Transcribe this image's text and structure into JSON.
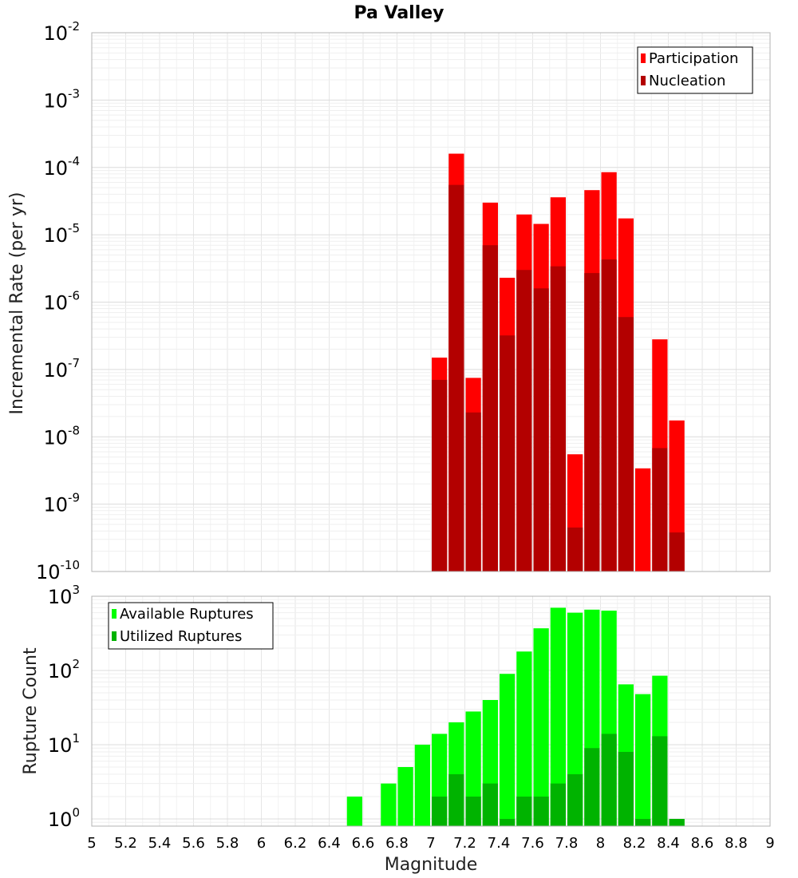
{
  "chart_data": [
    {
      "type": "bar",
      "title": "Pa Valley",
      "xlabel": "",
      "ylabel": "Incremental Rate (per yr)",
      "yscale": "log",
      "xlim": [
        5,
        9
      ],
      "ylim": [
        1e-10,
        0.01
      ],
      "yticks": [
        1e-10,
        1e-09,
        1e-08,
        1e-07,
        1e-06,
        1e-05,
        0.0001,
        0.001,
        0.01
      ],
      "ytick_labels": [
        {
          "base": "10",
          "exp": "-10"
        },
        {
          "base": "10",
          "exp": "-9"
        },
        {
          "base": "10",
          "exp": "-8"
        },
        {
          "base": "10",
          "exp": "-7"
        },
        {
          "base": "10",
          "exp": "-6"
        },
        {
          "base": "10",
          "exp": "-5"
        },
        {
          "base": "10",
          "exp": "-4"
        },
        {
          "base": "10",
          "exp": "-3"
        },
        {
          "base": "10",
          "exp": "-2"
        }
      ],
      "grid": true,
      "legend_position": "top-right",
      "bar_width": 0.1,
      "x": [
        7.05,
        7.15,
        7.25,
        7.35,
        7.45,
        7.55,
        7.65,
        7.75,
        7.85,
        7.95,
        8.05,
        8.15,
        8.25,
        8.35,
        8.45
      ],
      "series": [
        {
          "name": "Participation",
          "color": "#ff0000",
          "values": [
            1.5e-07,
            0.00016,
            7.5e-08,
            3e-05,
            2.3e-06,
            2e-05,
            1.45e-05,
            3.6e-05,
            5.5e-09,
            4.6e-05,
            8.5e-05,
            1.75e-05,
            3.4e-09,
            2.8e-07,
            1.75e-08
          ]
        },
        {
          "name": "Nucleation",
          "color": "#b30000",
          "values": [
            7e-08,
            5.5e-05,
            2.3e-08,
            7e-06,
            3.2e-07,
            3e-06,
            1.6e-06,
            3.4e-06,
            4.5e-10,
            2.7e-06,
            4.3e-06,
            6e-07,
            null,
            6.8e-09,
            3.8e-10
          ]
        }
      ]
    },
    {
      "type": "bar",
      "title": "",
      "xlabel": "Magnitude",
      "ylabel": "Rupture Count",
      "yscale": "log",
      "xlim": [
        5,
        9
      ],
      "ylim": [
        0.8,
        1000
      ],
      "yticks": [
        1,
        10,
        100,
        1000
      ],
      "ytick_labels": [
        {
          "base": "10",
          "exp": "0"
        },
        {
          "base": "10",
          "exp": "1"
        },
        {
          "base": "10",
          "exp": "2"
        },
        {
          "base": "10",
          "exp": "3"
        }
      ],
      "xticks": [
        5,
        5.2,
        5.4,
        5.6,
        5.8,
        6,
        6.2,
        6.4,
        6.6,
        6.8,
        7,
        7.2,
        7.4,
        7.6,
        7.8,
        8,
        8.2,
        8.4,
        8.6,
        8.8,
        9
      ],
      "xtick_labels": [
        "5",
        "5.2",
        "5.4",
        "5.6",
        "5.8",
        "6",
        "6.2",
        "6.4",
        "6.6",
        "6.8",
        "7",
        "7.2",
        "7.4",
        "7.6",
        "7.8",
        "8",
        "8.2",
        "8.4",
        "8.6",
        "8.8",
        "9"
      ],
      "grid": true,
      "legend_position": "top-left",
      "bar_width": 0.1,
      "x": [
        6.55,
        6.75,
        6.85,
        6.95,
        7.05,
        7.15,
        7.25,
        7.35,
        7.45,
        7.55,
        7.65,
        7.75,
        7.85,
        7.95,
        8.05,
        8.15,
        8.25,
        8.35,
        8.45
      ],
      "series": [
        {
          "name": "Available Ruptures",
          "color": "#00ff00",
          "values": [
            2,
            3,
            5,
            10,
            14,
            20,
            28,
            40,
            90,
            180,
            370,
            700,
            600,
            660,
            640,
            65,
            48,
            85,
            1
          ]
        },
        {
          "name": "Utilized Ruptures",
          "color": "#00b300",
          "values": [
            null,
            null,
            null,
            null,
            2,
            4,
            2,
            3,
            1,
            2,
            2,
            3,
            4,
            9,
            14,
            8,
            1,
            13,
            1
          ]
        }
      ]
    }
  ]
}
